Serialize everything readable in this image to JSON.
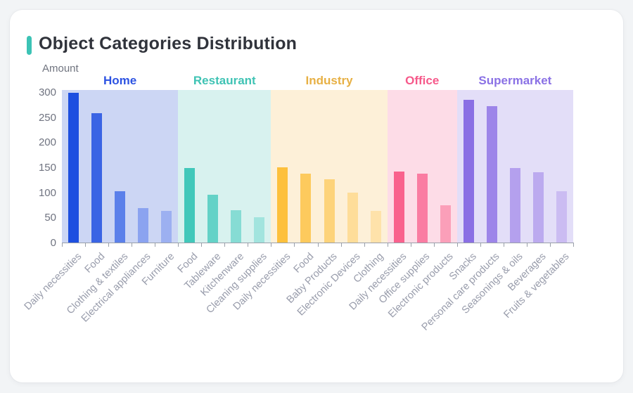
{
  "page": {
    "accent_color": "#3cc3b5",
    "background_color": "#f2f4f6",
    "card_color": "#ffffff"
  },
  "chart_data": {
    "type": "bar",
    "title": "Object Categories Distribution",
    "ylabel": "Amount",
    "xlabel": "",
    "ylim": [
      0,
      300
    ],
    "yticks": [
      0,
      50,
      100,
      150,
      200,
      250,
      300
    ],
    "grid": false,
    "legend_position": "none",
    "axis_color": "#9aa0aa",
    "groups": [
      {
        "name": "Home",
        "label_color": "#2d53e2",
        "band_color": "#ccd6f4",
        "bars": [
          {
            "label": "Daily necessities",
            "value": 298,
            "color": "#1d4fe0"
          },
          {
            "label": "Food",
            "value": 258,
            "color": "#3a64e4"
          },
          {
            "label": "Clothing & textiles",
            "value": 102,
            "color": "#5b80ea"
          },
          {
            "label": "Electrical appliances",
            "value": 68,
            "color": "#8ba3f0"
          },
          {
            "label": "Furniture",
            "value": 63,
            "color": "#9cb0f1"
          }
        ]
      },
      {
        "name": "Restaurant",
        "label_color": "#3fc3b4",
        "band_color": "#d8f2ef",
        "bars": [
          {
            "label": "Food",
            "value": 148,
            "color": "#41c8ba"
          },
          {
            "label": "Tableware",
            "value": 96,
            "color": "#64d2c7"
          },
          {
            "label": "Kitchenware",
            "value": 65,
            "color": "#86dcd4"
          },
          {
            "label": "Cleaning supplies",
            "value": 50,
            "color": "#a2e4de"
          }
        ]
      },
      {
        "name": "Industry",
        "label_color": "#e7b044",
        "band_color": "#fdf0d8",
        "bars": [
          {
            "label": "Daily necessities",
            "value": 150,
            "color": "#fdc03c"
          },
          {
            "label": "Food",
            "value": 138,
            "color": "#fdca5d"
          },
          {
            "label": "Baby Products",
            "value": 126,
            "color": "#fdd37a"
          },
          {
            "label": "Electronic Devices",
            "value": 99,
            "color": "#fedd99"
          },
          {
            "label": "Clothing",
            "value": 63,
            "color": "#fee2aa"
          }
        ]
      },
      {
        "name": "Office",
        "label_color": "#f6598a",
        "band_color": "#fddce7",
        "bars": [
          {
            "label": "Daily necessities",
            "value": 142,
            "color": "#f9618d"
          },
          {
            "label": "Office supplies",
            "value": 138,
            "color": "#fa7ca2"
          },
          {
            "label": "Electronic products",
            "value": 75,
            "color": "#fb9fb9"
          }
        ]
      },
      {
        "name": "Supermarket",
        "label_color": "#8a71e5",
        "band_color": "#e3def8",
        "bars": [
          {
            "label": "Snacks",
            "value": 285,
            "color": "#8a6fe4"
          },
          {
            "label": "Personal care products",
            "value": 272,
            "color": "#9d85e9"
          },
          {
            "label": "Seasonings & oils",
            "value": 148,
            "color": "#b4a0ee"
          },
          {
            "label": "Beverages",
            "value": 140,
            "color": "#bcaaef"
          },
          {
            "label": "Fruits & vegetables",
            "value": 102,
            "color": "#cbbcf2"
          }
        ]
      }
    ]
  }
}
